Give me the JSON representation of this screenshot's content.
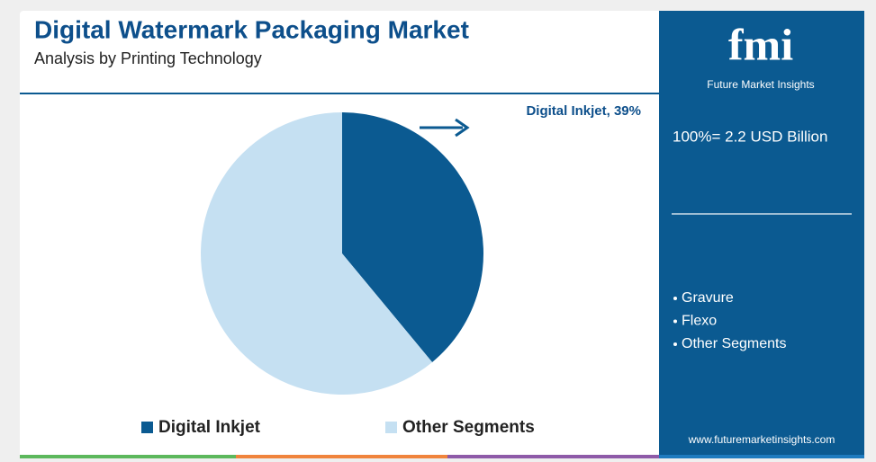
{
  "chart_data": {
    "type": "pie",
    "title": "Digital Watermark Packaging Market",
    "subtitle": "Analysis by Printing Technology",
    "categories": [
      "Digital Inkjet",
      "Other Segments"
    ],
    "values": [
      39,
      61
    ],
    "value_labels": [
      "Digital Inkjet, 39%",
      null
    ],
    "colors": [
      "#0b5a91",
      "#c5e0f2"
    ]
  },
  "panel": {
    "logo": "fmi",
    "brand": "Future Market Insights",
    "total": "100%= 2.2 USD Billion",
    "segments": [
      "Gravure",
      "Flexo",
      "Other Segments"
    ],
    "url": "www.futuremarketinsights.com"
  }
}
